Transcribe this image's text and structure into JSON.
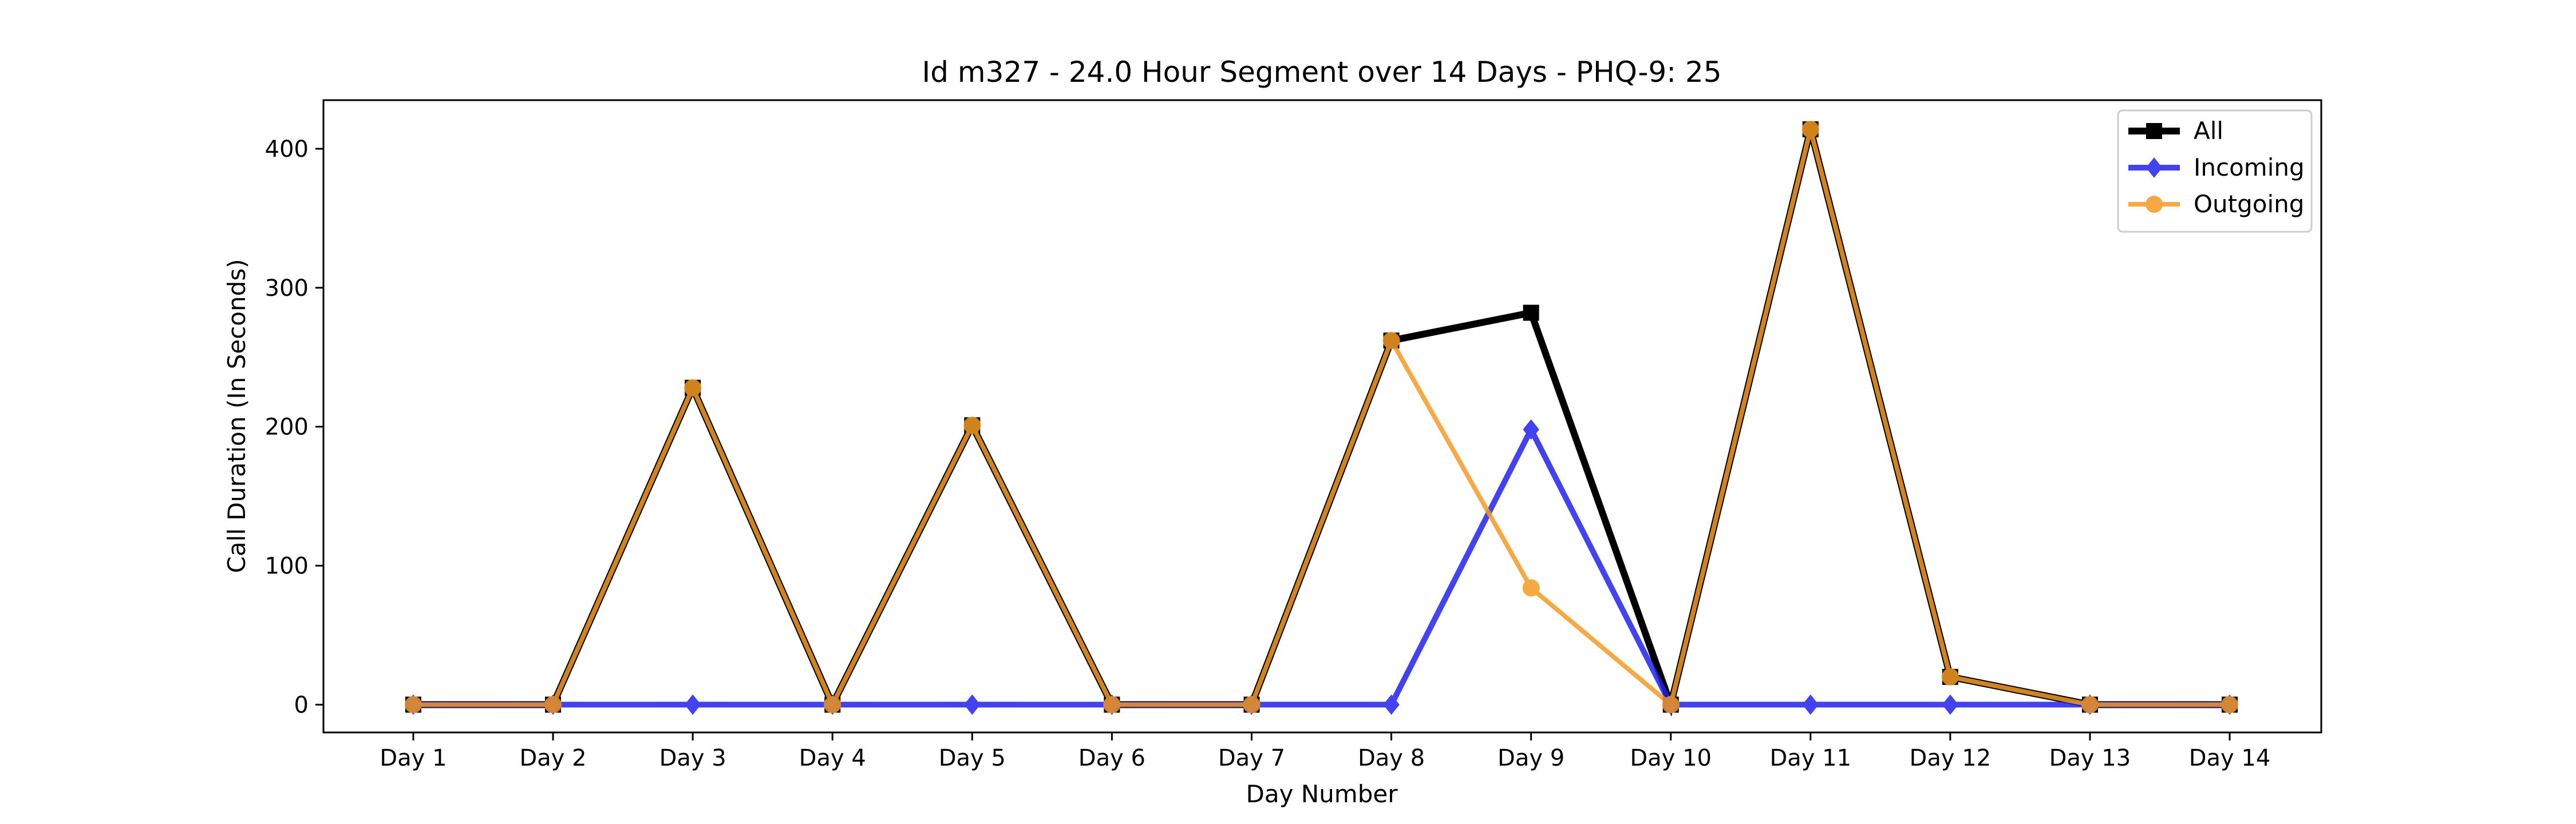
{
  "chart_data": {
    "type": "line",
    "title": "Id m327 - 24.0 Hour Segment over 14 Days - PHQ-9: 25",
    "xlabel": "Day Number",
    "ylabel": "Call Duration (In Seconds)",
    "categories": [
      "Day 1",
      "Day 2",
      "Day 3",
      "Day 4",
      "Day 5",
      "Day 6",
      "Day 7",
      "Day 8",
      "Day 9",
      "Day 10",
      "Day 11",
      "Day 12",
      "Day 13",
      "Day 14"
    ],
    "ylim": [
      -20,
      435
    ],
    "yticks": [
      0,
      100,
      200,
      300,
      400
    ],
    "grid": false,
    "legend_position": "top-right",
    "series": [
      {
        "name": "All",
        "marker": "square",
        "color": "#000000",
        "values": [
          0,
          0,
          228,
          0,
          201,
          0,
          0,
          262,
          282,
          0,
          414,
          20,
          0,
          0
        ]
      },
      {
        "name": "Incoming",
        "marker": "diamond",
        "color": "#2222ee",
        "values": [
          0,
          0,
          0,
          0,
          0,
          0,
          0,
          0,
          198,
          0,
          0,
          0,
          0,
          0
        ]
      },
      {
        "name": "Outgoing",
        "marker": "circle",
        "color": "#f59a23",
        "values": [
          0,
          0,
          228,
          0,
          201,
          0,
          0,
          262,
          84,
          0,
          414,
          20,
          0,
          0
        ]
      }
    ]
  }
}
